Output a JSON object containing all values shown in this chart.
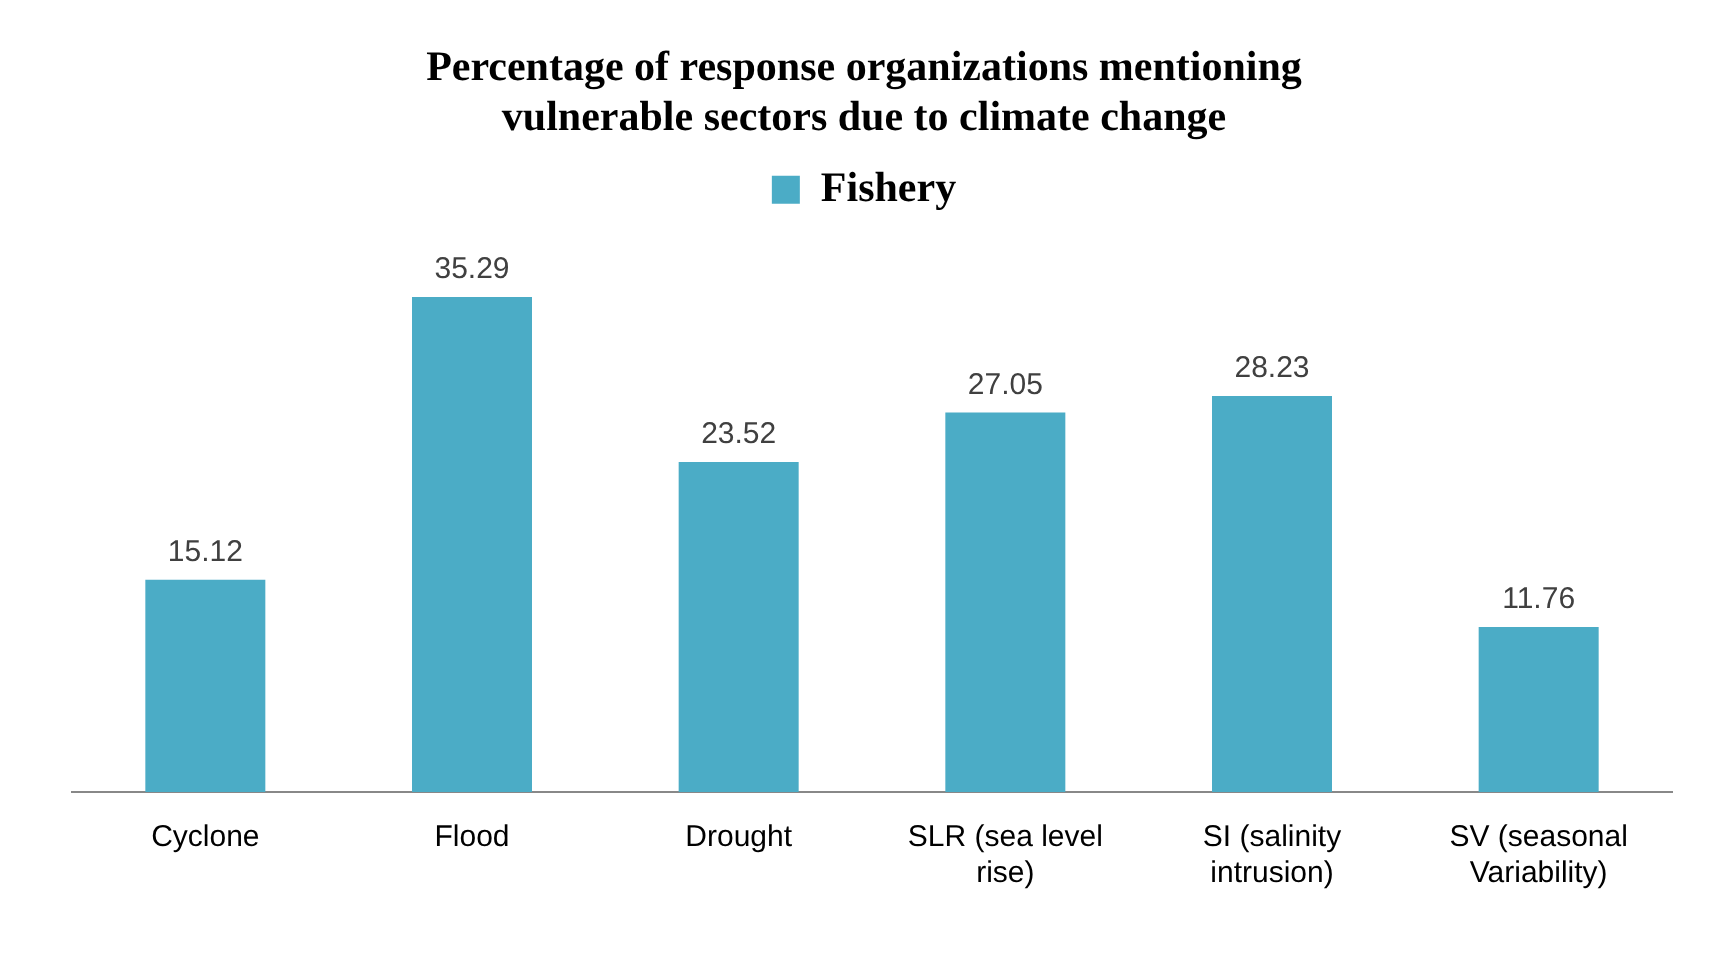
{
  "chart_data": {
    "type": "bar",
    "title": "Percentage of response organizations mentioning vulnerable sectors due to climate change",
    "categories": [
      "Cyclone",
      "Flood",
      "Drought",
      "SLR (sea level rise)",
      "SI (salinity intrusion)",
      "SV (seasonal Variability)"
    ],
    "series": [
      {
        "name": "Fishery",
        "color": "#4bacc6",
        "values": [
          15.12,
          35.29,
          23.52,
          27.05,
          28.23,
          11.76
        ]
      }
    ],
    "data_labels": true,
    "legend": "top",
    "grid": false
  }
}
